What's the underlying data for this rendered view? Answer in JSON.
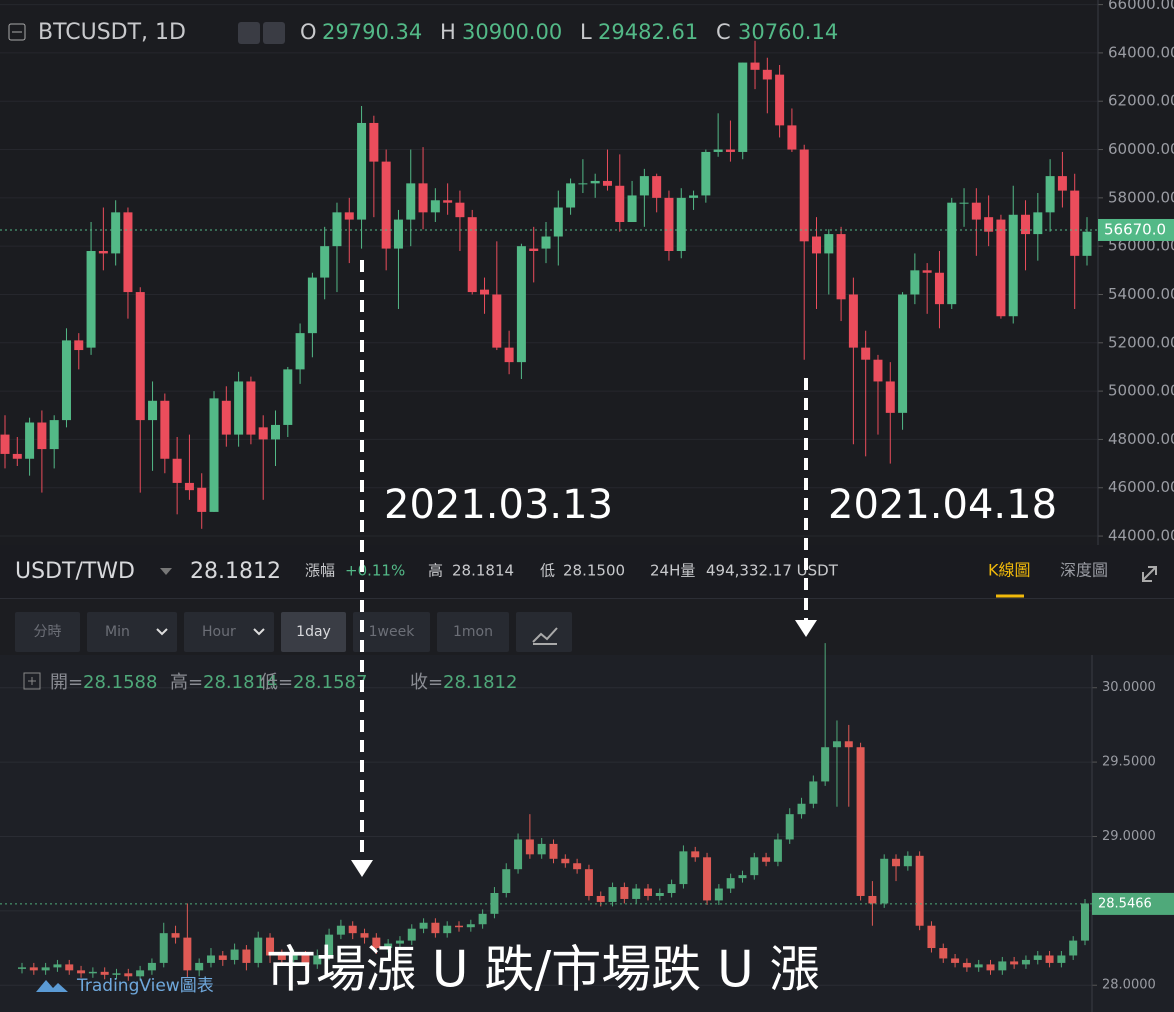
{
  "chart_data": [
    {
      "type": "candlestick",
      "title": "BTCUSDT, 1D",
      "ohlc_legend": [
        {
          "key": "O",
          "value": "29790.34"
        },
        {
          "key": "H",
          "value": "30900.00"
        },
        {
          "key": "L",
          "value": "29482.61"
        },
        {
          "key": "C",
          "value": "30760.14"
        }
      ],
      "up_color": "#53b987",
      "down_color": "#eb4d5c",
      "ylim": [
        43630,
        66190
      ],
      "yticks": [
        {
          "value": 44000,
          "label": "44000.00"
        },
        {
          "value": 46000,
          "label": "46000.00"
        },
        {
          "value": 48000,
          "label": "48000.00"
        },
        {
          "value": 50000,
          "label": "50000.00"
        },
        {
          "value": 52000,
          "label": "52000.00"
        },
        {
          "value": 54000,
          "label": "54000.00"
        },
        {
          "value": 56000,
          "label": "56000.00"
        },
        {
          "value": 58000,
          "label": "58000.00"
        },
        {
          "value": 60000,
          "label": "60000.00"
        },
        {
          "value": 62000,
          "label": "62000.00"
        },
        {
          "value": 64000,
          "label": "64000.00"
        },
        {
          "value": 66000,
          "label": "66000.00"
        }
      ],
      "last_price": {
        "value": 56670,
        "label": "56670.0"
      },
      "ohlc": [
        [
          48200,
          49000,
          46800,
          47400
        ],
        [
          47400,
          48100,
          46900,
          47200
        ],
        [
          47200,
          48900,
          46500,
          48700
        ],
        [
          48700,
          49200,
          45800,
          47600
        ],
        [
          47600,
          49000,
          46800,
          48800
        ],
        [
          48800,
          52600,
          48500,
          52100
        ],
        [
          52100,
          52400,
          50900,
          51700
        ],
        [
          51800,
          57000,
          51500,
          55800
        ],
        [
          55800,
          57600,
          55000,
          55700
        ],
        [
          55700,
          57900,
          55200,
          57400
        ],
        [
          57400,
          57600,
          53000,
          54100
        ],
        [
          54100,
          54300,
          45800,
          48800
        ],
        [
          48800,
          50400,
          46700,
          49600
        ],
        [
          49600,
          49900,
          46600,
          47200
        ],
        [
          47200,
          48100,
          44900,
          46200
        ],
        [
          46200,
          48200,
          45500,
          45900
        ],
        [
          46000,
          46600,
          44300,
          45000
        ],
        [
          45000,
          50000,
          45000,
          49700
        ],
        [
          49600,
          50200,
          47700,
          48200
        ],
        [
          48200,
          50800,
          47700,
          50400
        ],
        [
          50400,
          50600,
          47800,
          48200
        ],
        [
          48500,
          49000,
          45500,
          48000
        ],
        [
          48000,
          49200,
          46900,
          48600
        ],
        [
          48600,
          51000,
          48100,
          50900
        ],
        [
          50900,
          52800,
          50300,
          52400
        ],
        [
          52400,
          54900,
          51400,
          54700
        ],
        [
          54700,
          56800,
          53800,
          56000
        ],
        [
          56000,
          57800,
          54100,
          57400
        ],
        [
          57400,
          58000,
          55300,
          57100
        ],
        [
          57100,
          61800,
          55900,
          61100
        ],
        [
          61100,
          61400,
          57200,
          59500
        ],
        [
          59500,
          60000,
          55000,
          55900
        ],
        [
          55900,
          57500,
          53400,
          57100
        ],
        [
          57100,
          60000,
          56000,
          58600
        ],
        [
          58600,
          60100,
          56700,
          57400
        ],
        [
          57400,
          58400,
          57000,
          57900
        ],
        [
          57900,
          58600,
          57300,
          57800
        ],
        [
          57800,
          58300,
          55800,
          57200
        ],
        [
          57200,
          57500,
          54000,
          54100
        ],
        [
          54200,
          54700,
          53200,
          54000
        ],
        [
          54000,
          56200,
          51700,
          51800
        ],
        [
          51800,
          52500,
          50700,
          51200
        ],
        [
          51200,
          56100,
          50500,
          56000
        ],
        [
          55900,
          56800,
          54500,
          55800
        ],
        [
          55900,
          57000,
          55300,
          56400
        ],
        [
          56400,
          58300,
          55200,
          57600
        ],
        [
          57600,
          58800,
          57300,
          58600
        ],
        [
          58600,
          59600,
          58200,
          58600
        ],
        [
          58600,
          59000,
          58000,
          58700
        ],
        [
          58700,
          60000,
          58300,
          58500
        ],
        [
          58500,
          59800,
          56600,
          57000
        ],
        [
          57000,
          58700,
          57000,
          58100
        ],
        [
          58100,
          59200,
          56800,
          58900
        ],
        [
          58900,
          59000,
          57400,
          58000
        ],
        [
          58000,
          58300,
          55400,
          55800
        ],
        [
          55800,
          58400,
          55500,
          58000
        ],
        [
          58000,
          58300,
          57500,
          58100
        ],
        [
          58100,
          60000,
          57800,
          59900
        ],
        [
          59900,
          61500,
          59700,
          60000
        ],
        [
          60000,
          61200,
          59500,
          59900
        ],
        [
          59900,
          63600,
          59600,
          63600
        ],
        [
          63600,
          64500,
          62500,
          63300
        ],
        [
          63300,
          63800,
          61500,
          62900
        ],
        [
          63100,
          63500,
          60500,
          61000
        ],
        [
          61000,
          61700,
          59900,
          60000
        ],
        [
          60000,
          60200,
          51300,
          56200
        ],
        [
          56400,
          57200,
          53400,
          55700
        ],
        [
          55700,
          56700,
          54000,
          56500
        ],
        [
          56500,
          56800,
          52900,
          53800
        ],
        [
          54000,
          54700,
          47800,
          51800
        ],
        [
          51800,
          52500,
          47300,
          51300
        ],
        [
          51300,
          51500,
          48200,
          50400
        ],
        [
          50400,
          51200,
          47000,
          49100
        ],
        [
          49100,
          54100,
          48400,
          54000
        ],
        [
          54000,
          55700,
          53600,
          55000
        ],
        [
          55000,
          55300,
          53200,
          54900
        ],
        [
          54900,
          55800,
          52600,
          53600
        ],
        [
          53600,
          58000,
          53400,
          57800
        ],
        [
          57800,
          58400,
          56800,
          57800
        ],
        [
          57800,
          58400,
          55600,
          57100
        ],
        [
          57200,
          58100,
          56000,
          56600
        ],
        [
          57100,
          57300,
          53000,
          53100
        ],
        [
          53100,
          58500,
          52800,
          57300
        ],
        [
          57300,
          57900,
          55000,
          56500
        ],
        [
          56500,
          58200,
          55400,
          57400
        ],
        [
          57400,
          59600,
          56600,
          58900
        ],
        [
          58900,
          59900,
          57600,
          58300
        ],
        [
          58300,
          59000,
          53400,
          55600
        ],
        [
          55600,
          57200,
          55200,
          56600
        ]
      ]
    },
    {
      "type": "candlestick",
      "ohlc_legend": [
        {
          "key": "開=",
          "value": "28.1588"
        },
        {
          "key": "高=",
          "value": "28.1814"
        },
        {
          "key": "低=",
          "value": "28.1587"
        },
        {
          "key": "收=",
          "value": "28.1812"
        }
      ],
      "up_color": "#4fa97a",
      "down_color": "#df5a55",
      "ylim": [
        27.82,
        30.22
      ],
      "yticks": [
        {
          "value": 28,
          "label": "28.0000"
        },
        {
          "value": 28.5,
          "label": "28.5000"
        },
        {
          "value": 29,
          "label": "29.0000"
        },
        {
          "value": 29.5,
          "label": "29.5000"
        },
        {
          "value": 30,
          "label": "30.0000"
        }
      ],
      "last_price": {
        "value": 28.5466,
        "label": "28.5466"
      },
      "ohlc": [
        [
          28.11,
          28.15,
          28.08,
          28.12
        ],
        [
          28.12,
          28.15,
          28.07,
          28.1
        ],
        [
          28.1,
          28.15,
          28.07,
          28.12
        ],
        [
          28.12,
          28.17,
          28.09,
          28.14
        ],
        [
          28.14,
          28.17,
          28.07,
          28.1
        ],
        [
          28.1,
          28.13,
          28.05,
          28.08
        ],
        [
          28.08,
          28.12,
          28.05,
          28.09
        ],
        [
          28.09,
          28.12,
          28.04,
          28.07
        ],
        [
          28.07,
          28.11,
          28.04,
          28.08
        ],
        [
          28.08,
          28.11,
          28.03,
          28.06
        ],
        [
          28.06,
          28.13,
          28.03,
          28.1
        ],
        [
          28.1,
          28.18,
          28.07,
          28.15
        ],
        [
          28.15,
          28.42,
          28.12,
          28.35
        ],
        [
          28.35,
          28.4,
          28.28,
          28.32
        ],
        [
          28.32,
          28.55,
          28.05,
          28.1
        ],
        [
          28.1,
          28.18,
          28.06,
          28.15
        ],
        [
          28.15,
          28.25,
          28.12,
          28.2
        ],
        [
          28.2,
          28.23,
          28.13,
          28.17
        ],
        [
          28.17,
          28.28,
          28.14,
          28.24
        ],
        [
          28.24,
          28.27,
          28.1,
          28.15
        ],
        [
          28.15,
          28.36,
          28.12,
          28.32
        ],
        [
          28.32,
          28.35,
          28.15,
          28.2
        ],
        [
          28.2,
          28.24,
          28.13,
          28.17
        ],
        [
          28.17,
          28.24,
          28.14,
          28.2
        ],
        [
          28.2,
          28.23,
          28.1,
          28.14
        ],
        [
          28.14,
          28.24,
          28.11,
          28.2
        ],
        [
          28.2,
          28.38,
          28.17,
          28.34
        ],
        [
          28.34,
          28.44,
          28.31,
          28.4
        ],
        [
          28.4,
          28.43,
          28.31,
          28.35
        ],
        [
          28.35,
          28.38,
          28.28,
          28.32
        ],
        [
          28.32,
          28.35,
          28.21,
          28.25
        ],
        [
          28.25,
          28.31,
          28.22,
          28.28
        ],
        [
          28.28,
          28.33,
          28.25,
          28.3
        ],
        [
          28.3,
          28.41,
          28.27,
          28.38
        ],
        [
          28.38,
          28.45,
          28.35,
          28.42
        ],
        [
          28.42,
          28.45,
          28.32,
          28.35
        ],
        [
          28.35,
          28.43,
          28.32,
          28.4
        ],
        [
          28.4,
          28.43,
          28.36,
          28.39
        ],
        [
          28.39,
          28.44,
          28.36,
          28.41
        ],
        [
          28.41,
          28.51,
          28.38,
          28.48
        ],
        [
          28.48,
          28.66,
          28.45,
          28.62
        ],
        [
          28.62,
          28.82,
          28.59,
          28.78
        ],
        [
          28.78,
          29.02,
          28.75,
          28.98
        ],
        [
          28.98,
          29.15,
          28.85,
          28.88
        ],
        [
          28.88,
          28.99,
          28.85,
          28.95
        ],
        [
          28.95,
          28.98,
          28.82,
          28.85
        ],
        [
          28.85,
          28.88,
          28.79,
          28.82
        ],
        [
          28.82,
          28.85,
          28.75,
          28.78
        ],
        [
          28.78,
          28.81,
          28.57,
          28.6
        ],
        [
          28.6,
          28.63,
          28.53,
          28.56
        ],
        [
          28.56,
          28.69,
          28.53,
          28.66
        ],
        [
          28.66,
          28.69,
          28.55,
          28.58
        ],
        [
          28.58,
          28.68,
          28.55,
          28.65
        ],
        [
          28.65,
          28.68,
          28.57,
          28.6
        ],
        [
          28.6,
          28.65,
          28.57,
          28.62
        ],
        [
          28.62,
          28.71,
          28.59,
          28.68
        ],
        [
          28.68,
          28.94,
          28.65,
          28.9
        ],
        [
          28.9,
          28.93,
          28.83,
          28.86
        ],
        [
          28.86,
          28.89,
          28.54,
          28.57
        ],
        [
          28.57,
          28.68,
          28.54,
          28.65
        ],
        [
          28.65,
          28.75,
          28.62,
          28.72
        ],
        [
          28.72,
          28.77,
          28.69,
          28.74
        ],
        [
          28.74,
          28.89,
          28.71,
          28.86
        ],
        [
          28.86,
          28.89,
          28.8,
          28.83
        ],
        [
          28.83,
          29.02,
          28.8,
          28.98
        ],
        [
          28.98,
          29.19,
          28.95,
          29.15
        ],
        [
          29.15,
          29.26,
          29.12,
          29.22
        ],
        [
          29.22,
          29.41,
          29.19,
          29.37
        ],
        [
          29.37,
          30.3,
          29.34,
          29.6
        ],
        [
          29.6,
          29.78,
          29.2,
          29.64
        ],
        [
          29.64,
          29.75,
          29.2,
          29.6
        ],
        [
          29.6,
          29.63,
          28.57,
          28.6
        ],
        [
          28.6,
          28.7,
          28.4,
          28.55
        ],
        [
          28.55,
          28.88,
          28.52,
          28.85
        ],
        [
          28.85,
          28.88,
          28.7,
          28.8
        ],
        [
          28.8,
          28.9,
          28.77,
          28.87
        ],
        [
          28.87,
          28.9,
          28.37,
          28.4
        ],
        [
          28.4,
          28.43,
          28.22,
          28.25
        ],
        [
          28.25,
          28.28,
          28.15,
          28.18
        ],
        [
          28.18,
          28.21,
          28.12,
          28.15
        ],
        [
          28.15,
          28.18,
          28.09,
          28.12
        ],
        [
          28.12,
          28.17,
          28.09,
          28.14
        ],
        [
          28.14,
          28.17,
          28.07,
          28.1
        ],
        [
          28.1,
          28.19,
          28.07,
          28.16
        ],
        [
          28.16,
          28.19,
          28.11,
          28.14
        ],
        [
          28.14,
          28.2,
          28.11,
          28.17
        ],
        [
          28.17,
          28.23,
          28.14,
          28.2
        ],
        [
          28.2,
          28.23,
          28.12,
          28.15
        ],
        [
          28.15,
          28.23,
          28.12,
          28.2
        ],
        [
          28.2,
          28.33,
          28.17,
          28.3
        ],
        [
          28.3,
          28.58,
          28.27,
          28.55
        ]
      ]
    }
  ],
  "market_bar": {
    "pair": "USDT/TWD",
    "price": "28.1812",
    "stats": [
      {
        "label": "漲幅",
        "value": "+0.11%"
      },
      {
        "label": "高",
        "value": "28.1814"
      },
      {
        "label": "低",
        "value": "28.1500"
      },
      {
        "label": "24H量",
        "value": "494,332.17 USDT"
      }
    ],
    "tabs": [
      "K線圖",
      "深度圖"
    ]
  },
  "toolbar": {
    "buttons": [
      "分時",
      "Min",
      "Hour",
      "1day",
      "1week",
      "1mon"
    ]
  },
  "annotations": {
    "date_1": "2021.03.13",
    "date_2": "2021.04.18",
    "caption": "市場漲 U 跌/市場跌 U 漲",
    "watermark": "TradingView圖表"
  }
}
